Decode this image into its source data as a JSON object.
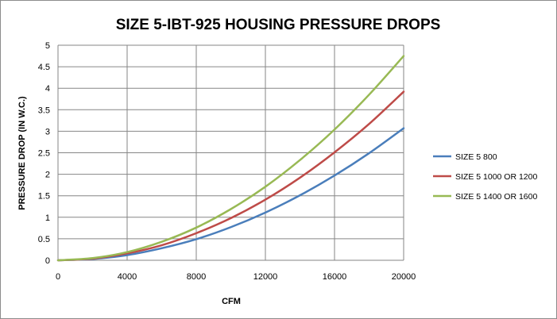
{
  "chart_data": {
    "type": "line",
    "title": "SIZE 5-IBT-925  HOUSING  PRESSURE DROPS",
    "xlabel": "CFM",
    "ylabel": "PRESSURE DROP  (IN W.C.)",
    "xlim": [
      0,
      20000
    ],
    "ylim": [
      0,
      5
    ],
    "x_ticks": [
      "0",
      "4000",
      "8000",
      "12000",
      "16000",
      "20000"
    ],
    "y_ticks": [
      "0",
      "0.5",
      "1",
      "1.5",
      "2",
      "2.5",
      "3",
      "3.5",
      "4",
      "4.5",
      "5"
    ],
    "grid": "vertical and horizontal major gridlines",
    "legend_position": "right",
    "x": [
      0,
      2000,
      4000,
      6000,
      8000,
      10000,
      12000,
      14000,
      16000,
      18000,
      20000
    ],
    "series": [
      {
        "name": "SIZE 5  800",
        "color": "#4a7ebb",
        "values": [
          0,
          0.03,
          0.12,
          0.28,
          0.49,
          0.77,
          1.11,
          1.51,
          1.97,
          2.49,
          3.07
        ]
      },
      {
        "name": "SIZE 5  1000 OR 1200",
        "color": "#be4b48",
        "values": [
          0,
          0.04,
          0.16,
          0.35,
          0.63,
          0.98,
          1.41,
          1.92,
          2.51,
          3.17,
          3.92
        ]
      },
      {
        "name": "SIZE 5  1400 OR 1600",
        "color": "#98b954",
        "values": [
          0,
          0.05,
          0.19,
          0.43,
          0.76,
          1.19,
          1.71,
          2.33,
          3.04,
          3.85,
          4.75
        ]
      }
    ]
  }
}
